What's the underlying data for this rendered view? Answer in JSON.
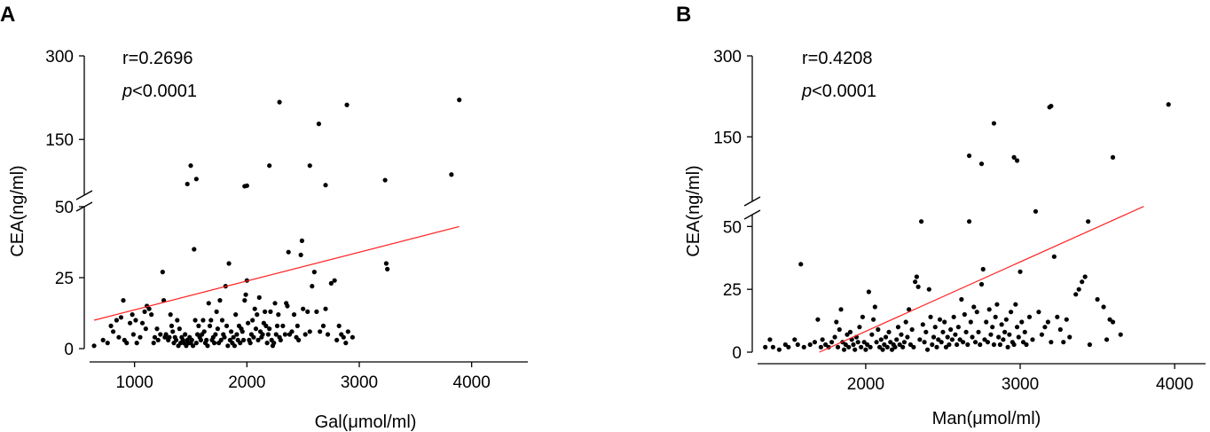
{
  "chart_data": [
    {
      "type": "scatter",
      "panel_label": "A",
      "xlabel": "Gal(μmol/ml)",
      "ylabel": "CEA(ng/ml)",
      "xlim": [
        600,
        4500
      ],
      "x_ticks": [
        1000,
        2000,
        3000,
        4000
      ],
      "y_axis": "broken",
      "ylim_lower": [
        0,
        50
      ],
      "ylim_upper": [
        50,
        300
      ],
      "y_ticks": [
        0,
        25,
        50,
        150,
        300
      ],
      "annotations": {
        "r": "r=0.2696",
        "p_prefix": "p",
        "p_suffix": "<0.0001"
      },
      "fit_line": {
        "x": [
          640,
          3890
        ],
        "y": [
          10,
          43
        ]
      },
      "points": [
        [
          640,
          1
        ],
        [
          720,
          3
        ],
        [
          760,
          2
        ],
        [
          790,
          8
        ],
        [
          810,
          6
        ],
        [
          840,
          10
        ],
        [
          860,
          4
        ],
        [
          880,
          11
        ],
        [
          900,
          17
        ],
        [
          910,
          3
        ],
        [
          930,
          2
        ],
        [
          960,
          9
        ],
        [
          980,
          12
        ],
        [
          990,
          5
        ],
        [
          1010,
          10
        ],
        [
          1020,
          2
        ],
        [
          1050,
          4
        ],
        [
          1070,
          9
        ],
        [
          1090,
          13
        ],
        [
          1100,
          7
        ],
        [
          1110,
          15
        ],
        [
          1130,
          14
        ],
        [
          1150,
          12
        ],
        [
          1170,
          2
        ],
        [
          1180,
          4
        ],
        [
          1200,
          7
        ],
        [
          1210,
          3
        ],
        [
          1230,
          5
        ],
        [
          1250,
          27
        ],
        [
          1260,
          17
        ],
        [
          1270,
          4
        ],
        [
          1280,
          5
        ],
        [
          1300,
          3
        ],
        [
          1310,
          4
        ],
        [
          1320,
          12
        ],
        [
          1330,
          8
        ],
        [
          1340,
          6
        ],
        [
          1350,
          2
        ],
        [
          1360,
          4
        ],
        [
          1370,
          3
        ],
        [
          1380,
          10
        ],
        [
          1390,
          1
        ],
        [
          1400,
          7
        ],
        [
          1410,
          2
        ],
        [
          1420,
          4
        ],
        [
          1430,
          3
        ],
        [
          1440,
          2
        ],
        [
          1450,
          5
        ],
        [
          1460,
          1
        ],
        [
          1470,
          3
        ],
        [
          1480,
          2
        ],
        [
          1490,
          4
        ],
        [
          1500,
          2
        ],
        [
          1510,
          3
        ],
        [
          1520,
          1
        ],
        [
          1530,
          35
        ],
        [
          1540,
          10
        ],
        [
          1550,
          2
        ],
        [
          1560,
          5
        ],
        [
          1570,
          8
        ],
        [
          1580,
          4
        ],
        [
          1590,
          3
        ],
        [
          1600,
          5
        ],
        [
          1610,
          10
        ],
        [
          1620,
          6
        ],
        [
          1630,
          2
        ],
        [
          1640,
          3
        ],
        [
          1650,
          1
        ],
        [
          1660,
          16
        ],
        [
          1670,
          8
        ],
        [
          1680,
          10
        ],
        [
          1690,
          3
        ],
        [
          1700,
          4
        ],
        [
          1710,
          2
        ],
        [
          1720,
          5
        ],
        [
          1730,
          13
        ],
        [
          1740,
          7
        ],
        [
          1750,
          2
        ],
        [
          1760,
          17
        ],
        [
          1770,
          3
        ],
        [
          1780,
          10
        ],
        [
          1790,
          5
        ],
        [
          1800,
          4
        ],
        [
          1810,
          22
        ],
        [
          1820,
          8
        ],
        [
          1830,
          1
        ],
        [
          1840,
          30
        ],
        [
          1850,
          3
        ],
        [
          1860,
          6
        ],
        [
          1870,
          2
        ],
        [
          1880,
          4
        ],
        [
          1890,
          1
        ],
        [
          1900,
          12
        ],
        [
          1910,
          5
        ],
        [
          1920,
          3
        ],
        [
          1930,
          8
        ],
        [
          1940,
          2
        ],
        [
          1950,
          7
        ],
        [
          1960,
          6
        ],
        [
          1970,
          3
        ],
        [
          1980,
          17
        ],
        [
          1990,
          19
        ],
        [
          2000,
          24
        ],
        [
          2010,
          9
        ],
        [
          2020,
          3
        ],
        [
          2030,
          2
        ],
        [
          2040,
          5
        ],
        [
          2050,
          10
        ],
        [
          2060,
          4
        ],
        [
          2070,
          14
        ],
        [
          2080,
          7
        ],
        [
          2090,
          12
        ],
        [
          2100,
          3
        ],
        [
          2110,
          18
        ],
        [
          2120,
          6
        ],
        [
          2130,
          4
        ],
        [
          2140,
          5
        ],
        [
          2150,
          9
        ],
        [
          2160,
          13
        ],
        [
          2170,
          8
        ],
        [
          2180,
          2
        ],
        [
          2190,
          5
        ],
        [
          2200,
          7
        ],
        [
          2210,
          13
        ],
        [
          2220,
          3
        ],
        [
          2230,
          1
        ],
        [
          2240,
          2
        ],
        [
          2250,
          16
        ],
        [
          2260,
          5
        ],
        [
          2270,
          8
        ],
        [
          2280,
          12
        ],
        [
          2290,
          4
        ],
        [
          2300,
          3
        ],
        [
          2320,
          8
        ],
        [
          2340,
          5
        ],
        [
          2350,
          16
        ],
        [
          2360,
          15
        ],
        [
          2370,
          34
        ],
        [
          2380,
          5
        ],
        [
          2400,
          6
        ],
        [
          2420,
          12
        ],
        [
          2440,
          4
        ],
        [
          2450,
          8
        ],
        [
          2460,
          3
        ],
        [
          2480,
          33
        ],
        [
          2490,
          38
        ],
        [
          2500,
          14
        ],
        [
          2520,
          5
        ],
        [
          2540,
          13
        ],
        [
          2560,
          6
        ],
        [
          2580,
          22
        ],
        [
          2600,
          27
        ],
        [
          2620,
          13
        ],
        [
          2650,
          6
        ],
        [
          2680,
          8
        ],
        [
          2700,
          14
        ],
        [
          2720,
          5
        ],
        [
          2750,
          23
        ],
        [
          2780,
          24
        ],
        [
          2800,
          3
        ],
        [
          2820,
          8
        ],
        [
          2840,
          5
        ],
        [
          2860,
          4
        ],
        [
          2880,
          2
        ],
        [
          2900,
          6
        ],
        [
          2940,
          4
        ],
        [
          3240,
          30
        ],
        [
          3250,
          28
        ],
        [
          1470,
          70
        ],
        [
          1500,
          103
        ],
        [
          1550,
          79
        ],
        [
          1980,
          66
        ],
        [
          2000,
          67
        ],
        [
          2200,
          103
        ],
        [
          2290,
          217
        ],
        [
          2560,
          103
        ],
        [
          2640,
          178
        ],
        [
          2700,
          68
        ],
        [
          2890,
          212
        ],
        [
          3230,
          77
        ],
        [
          3820,
          87
        ],
        [
          3890,
          221
        ]
      ]
    },
    {
      "type": "scatter",
      "panel_label": "B",
      "xlabel": "Man(μmol/ml)",
      "ylabel": "CEA(ng/ml)",
      "xlim": [
        1300,
        4200
      ],
      "x_ticks": [
        2000,
        3000,
        4000
      ],
      "y_axis": "broken",
      "ylim_lower": [
        0,
        60
      ],
      "ylim_upper": [
        60,
        300
      ],
      "y_ticks": [
        0,
        25,
        50,
        150,
        300
      ],
      "annotations": {
        "r": "r=0.4208",
        "p_prefix": "p",
        "p_suffix": "<0.0001"
      },
      "fit_line": {
        "x": [
          1700,
          3800
        ],
        "y": [
          0,
          58
        ]
      },
      "points": [
        [
          1350,
          2
        ],
        [
          1380,
          5
        ],
        [
          1400,
          2
        ],
        [
          1440,
          1
        ],
        [
          1480,
          3
        ],
        [
          1500,
          2
        ],
        [
          1540,
          5
        ],
        [
          1560,
          3
        ],
        [
          1580,
          35
        ],
        [
          1600,
          2
        ],
        [
          1640,
          3
        ],
        [
          1670,
          4
        ],
        [
          1690,
          13
        ],
        [
          1710,
          2
        ],
        [
          1720,
          5
        ],
        [
          1740,
          3
        ],
        [
          1760,
          2
        ],
        [
          1780,
          4
        ],
        [
          1800,
          6
        ],
        [
          1810,
          12
        ],
        [
          1820,
          2
        ],
        [
          1830,
          9
        ],
        [
          1840,
          17
        ],
        [
          1850,
          4
        ],
        [
          1860,
          1
        ],
        [
          1870,
          3
        ],
        [
          1880,
          7
        ],
        [
          1890,
          2
        ],
        [
          1900,
          8
        ],
        [
          1910,
          5
        ],
        [
          1920,
          3
        ],
        [
          1930,
          1
        ],
        [
          1940,
          6
        ],
        [
          1950,
          4
        ],
        [
          1960,
          10
        ],
        [
          1970,
          2
        ],
        [
          1980,
          14
        ],
        [
          1990,
          4
        ],
        [
          2000,
          1
        ],
        [
          2010,
          3
        ],
        [
          2020,
          24
        ],
        [
          2030,
          2
        ],
        [
          2040,
          7
        ],
        [
          2050,
          13
        ],
        [
          2060,
          18
        ],
        [
          2070,
          4
        ],
        [
          2080,
          9
        ],
        [
          2090,
          2
        ],
        [
          2100,
          5
        ],
        [
          2110,
          1
        ],
        [
          2120,
          3
        ],
        [
          2130,
          6
        ],
        [
          2140,
          2
        ],
        [
          2150,
          8
        ],
        [
          2160,
          4
        ],
        [
          2170,
          1
        ],
        [
          2180,
          3
        ],
        [
          2190,
          2
        ],
        [
          2200,
          5
        ],
        [
          2210,
          10
        ],
        [
          2220,
          3
        ],
        [
          2230,
          7
        ],
        [
          2240,
          2
        ],
        [
          2250,
          4
        ],
        [
          2260,
          12
        ],
        [
          2270,
          6
        ],
        [
          2280,
          17
        ],
        [
          2290,
          3
        ],
        [
          2300,
          9
        ],
        [
          2310,
          2
        ],
        [
          2320,
          28
        ],
        [
          2330,
          30
        ],
        [
          2340,
          26
        ],
        [
          2350,
          5
        ],
        [
          2360,
          52
        ],
        [
          2370,
          11
        ],
        [
          2380,
          4
        ],
        [
          2390,
          8
        ],
        [
          2400,
          1
        ],
        [
          2410,
          25
        ],
        [
          2420,
          14
        ],
        [
          2430,
          3
        ],
        [
          2440,
          6
        ],
        [
          2450,
          10
        ],
        [
          2460,
          2
        ],
        [
          2470,
          5
        ],
        [
          2480,
          13
        ],
        [
          2490,
          4
        ],
        [
          2500,
          8
        ],
        [
          2510,
          12
        ],
        [
          2520,
          2
        ],
        [
          2530,
          6
        ],
        [
          2540,
          3
        ],
        [
          2550,
          9
        ],
        [
          2560,
          5
        ],
        [
          2570,
          14
        ],
        [
          2580,
          7
        ],
        [
          2590,
          3
        ],
        [
          2600,
          10
        ],
        [
          2610,
          5
        ],
        [
          2620,
          21
        ],
        [
          2630,
          4
        ],
        [
          2640,
          15
        ],
        [
          2650,
          8
        ],
        [
          2660,
          3
        ],
        [
          2670,
          52
        ],
        [
          2680,
          12
        ],
        [
          2690,
          6
        ],
        [
          2700,
          18
        ],
        [
          2710,
          4
        ],
        [
          2720,
          16
        ],
        [
          2730,
          8
        ],
        [
          2740,
          3
        ],
        [
          2750,
          27
        ],
        [
          2760,
          33
        ],
        [
          2770,
          5
        ],
        [
          2780,
          12
        ],
        [
          2790,
          4
        ],
        [
          2800,
          17
        ],
        [
          2810,
          7
        ],
        [
          2820,
          10
        ],
        [
          2830,
          3
        ],
        [
          2840,
          14
        ],
        [
          2850,
          19
        ],
        [
          2860,
          6
        ],
        [
          2870,
          3
        ],
        [
          2880,
          11
        ],
        [
          2890,
          5
        ],
        [
          2900,
          8
        ],
        [
          2910,
          13
        ],
        [
          2920,
          2
        ],
        [
          2930,
          7
        ],
        [
          2940,
          16
        ],
        [
          2950,
          4
        ],
        [
          2960,
          3
        ],
        [
          2970,
          19
        ],
        [
          2980,
          10
        ],
        [
          2990,
          6
        ],
        [
          3000,
          32
        ],
        [
          3010,
          12
        ],
        [
          3020,
          4
        ],
        [
          3030,
          8
        ],
        [
          3040,
          3
        ],
        [
          3060,
          14
        ],
        [
          3080,
          5
        ],
        [
          3100,
          56
        ],
        [
          3120,
          16
        ],
        [
          3140,
          7
        ],
        [
          3160,
          10
        ],
        [
          3180,
          12
        ],
        [
          3200,
          4
        ],
        [
          3220,
          38
        ],
        [
          3240,
          14
        ],
        [
          3260,
          9
        ],
        [
          3280,
          4
        ],
        [
          3300,
          13
        ],
        [
          3320,
          6
        ],
        [
          3360,
          23
        ],
        [
          3380,
          25
        ],
        [
          3400,
          28
        ],
        [
          3420,
          30
        ],
        [
          3440,
          52
        ],
        [
          3450,
          3
        ],
        [
          3500,
          21
        ],
        [
          3540,
          18
        ],
        [
          3560,
          5
        ],
        [
          3580,
          13
        ],
        [
          3600,
          12
        ],
        [
          3650,
          7
        ],
        [
          2670,
          115
        ],
        [
          2750,
          100
        ],
        [
          2830,
          175
        ],
        [
          2960,
          112
        ],
        [
          2980,
          106
        ],
        [
          3190,
          205
        ],
        [
          3200,
          207
        ],
        [
          3600,
          112
        ],
        [
          3960,
          210
        ]
      ]
    }
  ]
}
